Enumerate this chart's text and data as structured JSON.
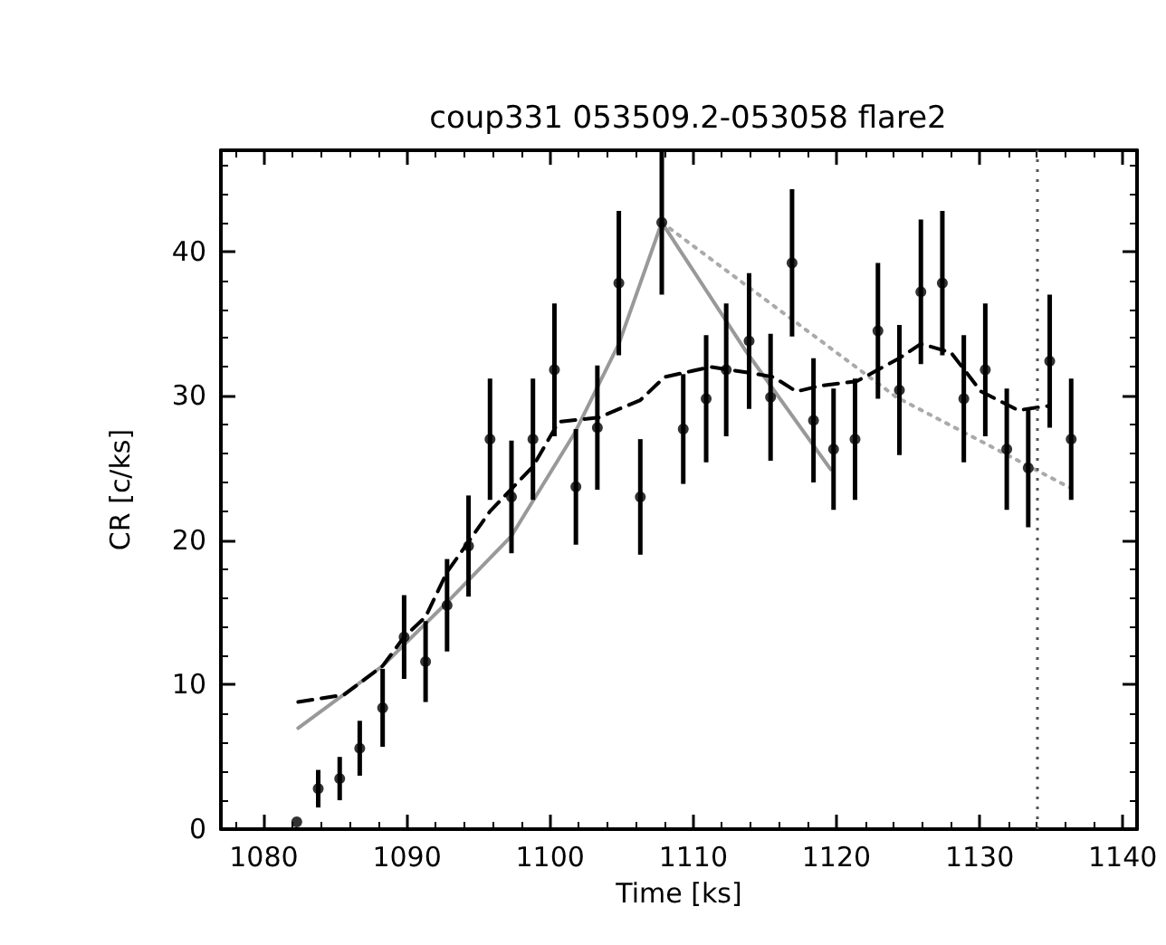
{
  "chart_data": {
    "type": "scatter",
    "title": "coup331 053509.2-053058 flare2",
    "xlabel": "Time [ks]",
    "ylabel": "CR [c/ks]",
    "xlim": [
      1077,
      1141
    ],
    "xticks": [
      1080,
      1090,
      1100,
      1110,
      1120,
      1130,
      1140
    ],
    "ylim": [
      0,
      47
    ],
    "yticks": [
      0,
      10,
      20,
      30,
      40
    ],
    "grid": false,
    "series": [
      {
        "color": "#000000",
        "marker": "circle",
        "x": [
          1082.3,
          1083.8,
          1085.3,
          1086.7,
          1088.3,
          1089.8,
          1091.3,
          1092.8,
          1094.3,
          1095.8,
          1097.3,
          1098.8,
          1100.3,
          1101.8,
          1103.3,
          1104.8,
          1106.3,
          1107.8,
          1109.3,
          1110.9,
          1112.3,
          1113.9,
          1115.4,
          1116.9,
          1118.4,
          1119.8,
          1121.3,
          1122.9,
          1124.4,
          1125.9,
          1127.4,
          1128.9,
          1130.4,
          1131.9,
          1133.4,
          1134.9,
          1136.4
        ],
        "values": [
          0.5,
          2.8,
          3.5,
          5.6,
          8.4,
          13.3,
          11.6,
          15.5,
          19.6,
          27.0,
          23.0,
          27.0,
          31.8,
          23.7,
          27.8,
          37.8,
          23.0,
          42.0,
          27.7,
          29.8,
          31.8,
          33.8,
          29.9,
          39.2,
          28.3,
          26.3,
          27.0,
          34.5,
          30.4,
          37.2,
          37.8,
          29.8,
          31.8,
          26.3,
          25.0,
          32.4,
          27.0
        ],
        "errors": [
          null,
          1.3,
          1.5,
          1.9,
          2.7,
          2.9,
          2.8,
          3.2,
          3.5,
          4.2,
          3.9,
          4.2,
          4.6,
          4.0,
          4.3,
          5.0,
          4.0,
          5.0,
          3.8,
          4.4,
          4.6,
          4.7,
          4.4,
          5.1,
          4.3,
          4.2,
          4.2,
          4.7,
          4.5,
          5.0,
          5.0,
          4.4,
          4.6,
          4.2,
          4.1,
          4.6,
          4.2
        ]
      },
      {
        "type": "line",
        "color": "#999999",
        "line_style": "solid",
        "x": [
          1082.4,
          1088.3,
          1092.8,
          1097.3,
          1101.7,
          1104.8,
          1107.8,
          1113.6,
          1119.6
        ],
        "values": [
          7.0,
          11.3,
          15.7,
          20.3,
          27.4,
          33.6,
          42.0,
          33.2,
          24.9
        ]
      },
      {
        "type": "line",
        "color": "#aaaaaa",
        "line_style": "dotted",
        "x": [
          1107.8,
          1124.2,
          1136.4
        ],
        "values": [
          42.0,
          29.9,
          23.6
        ]
      },
      {
        "type": "line",
        "color": "#000000",
        "line_style": "dashed",
        "x": [
          1082.4,
          1085.6,
          1088.3,
          1089.8,
          1091.3,
          1092.8,
          1095.8,
          1098.8,
          1100.6,
          1103.4,
          1106.3,
          1108.0,
          1111.2,
          1113.9,
          1115.6,
          1117.2,
          1118.9,
          1121.4,
          1124.4,
          1125.9,
          1128.0,
          1130.1,
          1132.7,
          1134.8
        ],
        "values": [
          8.8,
          9.3,
          11.3,
          13.3,
          14.7,
          17.8,
          22.0,
          25.1,
          28.2,
          28.5,
          29.7,
          31.3,
          32.0,
          31.6,
          31.3,
          30.3,
          30.7,
          31.0,
          32.6,
          33.6,
          33.0,
          30.3,
          29.0,
          29.3
        ]
      }
    ],
    "ref_lines": [
      {
        "axis": "x",
        "value": 1134,
        "color": "#555555",
        "line_style": "dotted"
      }
    ]
  }
}
